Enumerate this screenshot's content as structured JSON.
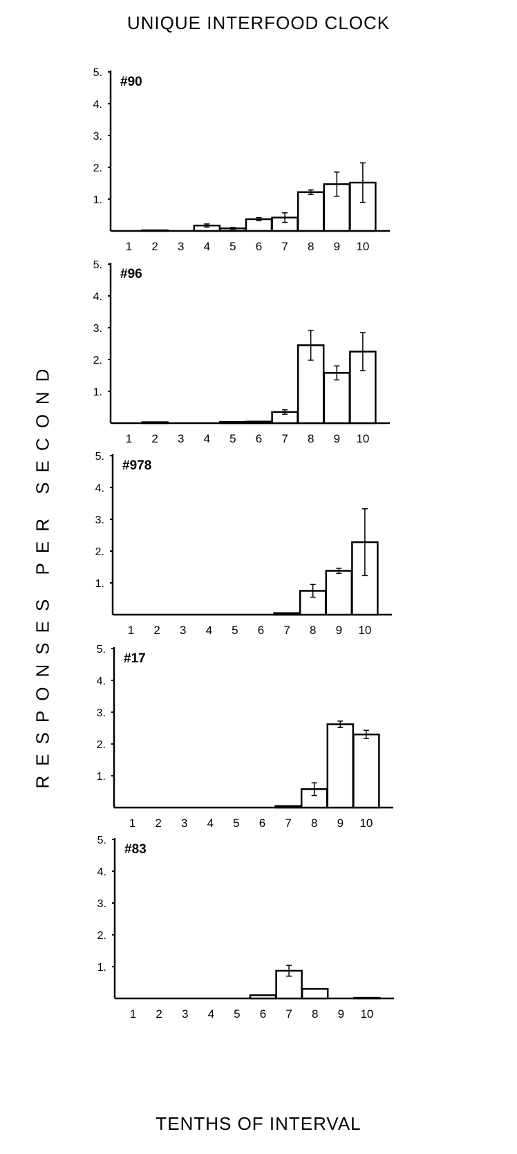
{
  "title": "UNIQUE INTERFOOD CLOCK",
  "ylabel": "RESPONSES PER SECOND",
  "xlabel": "TENTHS OF INTERVAL",
  "chart_data": [
    {
      "type": "bar",
      "panel_label": "#90",
      "categories": [
        "1",
        "2",
        "3",
        "4",
        "5",
        "6",
        "7",
        "8",
        "9",
        "10"
      ],
      "values": [
        0,
        0.02,
        0,
        0.17,
        0.08,
        0.37,
        0.42,
        1.22,
        1.47,
        1.52
      ],
      "error": [
        0,
        0,
        0,
        0.05,
        0.03,
        0.05,
        0.15,
        0.07,
        0.38,
        0.62
      ],
      "yticks": [
        "5.",
        "4.",
        "3.",
        "2.",
        "1."
      ],
      "ylim": [
        0,
        5
      ]
    },
    {
      "type": "bar",
      "panel_label": "#96",
      "categories": [
        "1",
        "2",
        "3",
        "4",
        "5",
        "6",
        "7",
        "8",
        "9",
        "10"
      ],
      "values": [
        0,
        0.03,
        0,
        0,
        0.04,
        0.05,
        0.35,
        2.45,
        1.58,
        2.25
      ],
      "error": [
        0,
        0,
        0,
        0,
        0,
        0,
        0.07,
        0.47,
        0.22,
        0.6
      ],
      "yticks": [
        "5.",
        "4.",
        "3.",
        "2.",
        "1."
      ],
      "ylim": [
        0,
        5
      ]
    },
    {
      "type": "bar",
      "panel_label": "#978",
      "categories": [
        "1",
        "2",
        "3",
        "4",
        "5",
        "6",
        "7",
        "8",
        "9",
        "10"
      ],
      "values": [
        0,
        0,
        0,
        0,
        0,
        0,
        0.05,
        0.75,
        1.38,
        2.28
      ],
      "error": [
        0,
        0,
        0,
        0,
        0,
        0,
        0,
        0.2,
        0.08,
        1.05
      ],
      "yticks": [
        "5.",
        "4.",
        "3.",
        "2.",
        "1."
      ],
      "ylim": [
        0,
        5
      ]
    },
    {
      "type": "bar",
      "panel_label": "#17",
      "categories": [
        "1",
        "2",
        "3",
        "4",
        "5",
        "6",
        "7",
        "8",
        "9",
        "10"
      ],
      "values": [
        0,
        0,
        0,
        0,
        0,
        0,
        0.05,
        0.58,
        2.62,
        2.3
      ],
      "error": [
        0,
        0,
        0,
        0,
        0,
        0,
        0,
        0.2,
        0.1,
        0.13
      ],
      "yticks": [
        "5.",
        "4.",
        "3.",
        "2.",
        "1."
      ],
      "ylim": [
        0,
        5
      ]
    },
    {
      "type": "bar",
      "panel_label": "#83",
      "categories": [
        "1",
        "2",
        "3",
        "4",
        "5",
        "6",
        "7",
        "8",
        "9",
        "10"
      ],
      "values": [
        0,
        0,
        0,
        0,
        0,
        0.1,
        0.87,
        0.3,
        0,
        0.02
      ],
      "error": [
        0,
        0,
        0,
        0,
        0,
        0,
        0.17,
        0,
        0,
        0
      ],
      "yticks": [
        "5.",
        "4.",
        "3.",
        "2.",
        "1."
      ],
      "ylim": [
        0,
        5
      ]
    }
  ]
}
